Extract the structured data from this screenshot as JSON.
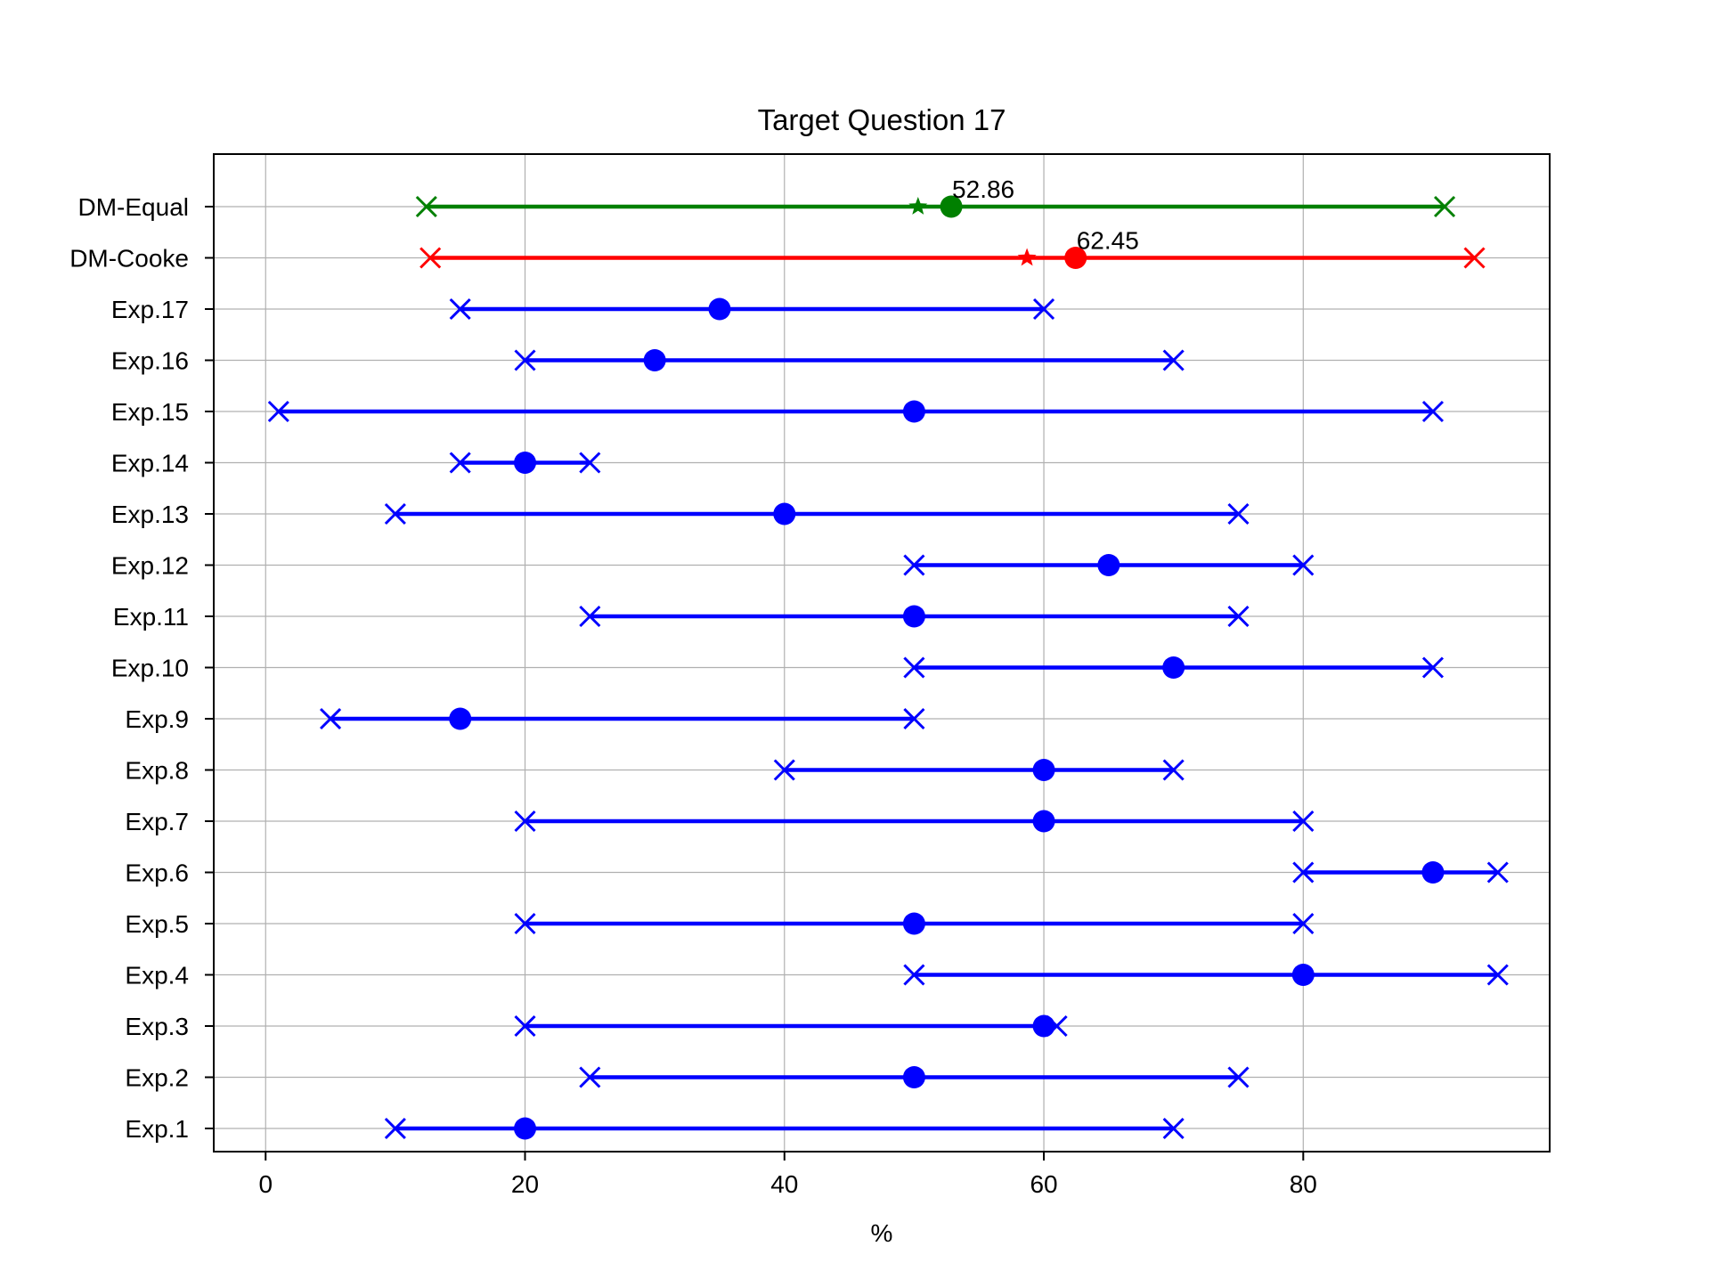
{
  "chart_data": {
    "type": "interval",
    "title": "Target Question 17",
    "xlabel": "%",
    "ylabel": "",
    "xlim": [
      -4,
      99
    ],
    "xticks": [
      0,
      20,
      40,
      60,
      80
    ],
    "grid": true,
    "rows": [
      {
        "label": "DM-Equal",
        "low": 12.4,
        "high": 90.9,
        "median": 52.86,
        "mean": 50.3,
        "color": "#008000",
        "annotation": "52.86"
      },
      {
        "label": "DM-Cooke",
        "low": 12.7,
        "high": 93.2,
        "median": 62.45,
        "mean": 58.7,
        "color": "#ff0000",
        "annotation": "62.45"
      },
      {
        "label": "Exp.17",
        "low": 15,
        "high": 60,
        "median": 35,
        "color": "#0000ff"
      },
      {
        "label": "Exp.16",
        "low": 20,
        "high": 70,
        "median": 30,
        "color": "#0000ff"
      },
      {
        "label": "Exp.15",
        "low": 1,
        "high": 90,
        "median": 50,
        "color": "#0000ff"
      },
      {
        "label": "Exp.14",
        "low": 15,
        "high": 25,
        "median": 20,
        "color": "#0000ff"
      },
      {
        "label": "Exp.13",
        "low": 10,
        "high": 75,
        "median": 40,
        "color": "#0000ff"
      },
      {
        "label": "Exp.12",
        "low": 50,
        "high": 80,
        "median": 65,
        "color": "#0000ff"
      },
      {
        "label": "Exp.11",
        "low": 25,
        "high": 75,
        "median": 50,
        "color": "#0000ff"
      },
      {
        "label": "Exp.10",
        "low": 50,
        "high": 90,
        "median": 70,
        "color": "#0000ff"
      },
      {
        "label": "Exp.9",
        "low": 5,
        "high": 50,
        "median": 15,
        "color": "#0000ff"
      },
      {
        "label": "Exp.8",
        "low": 40,
        "high": 70,
        "median": 60,
        "color": "#0000ff"
      },
      {
        "label": "Exp.7",
        "low": 20,
        "high": 80,
        "median": 60,
        "color": "#0000ff"
      },
      {
        "label": "Exp.6",
        "low": 80,
        "high": 95,
        "median": 90,
        "color": "#0000ff"
      },
      {
        "label": "Exp.5",
        "low": 20,
        "high": 80,
        "median": 50,
        "color": "#0000ff"
      },
      {
        "label": "Exp.4",
        "low": 50,
        "high": 95,
        "median": 80,
        "color": "#0000ff"
      },
      {
        "label": "Exp.3",
        "low": 20,
        "high": 61,
        "median": 60,
        "color": "#0000ff"
      },
      {
        "label": "Exp.2",
        "low": 25,
        "high": 75,
        "median": 50,
        "color": "#0000ff"
      },
      {
        "label": "Exp.1",
        "low": 10,
        "high": 70,
        "median": 20,
        "color": "#0000ff"
      }
    ]
  }
}
